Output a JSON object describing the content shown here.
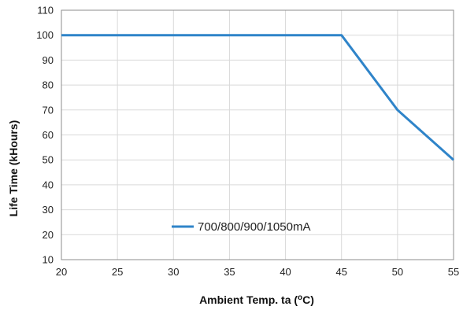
{
  "chart_data": {
    "type": "line",
    "title": "",
    "xlabel_prefix": "Ambient  Temp. ta (",
    "xlabel_sup": "o",
    "xlabel_suffix": "C)",
    "ylabel": "Life Time (kHours)",
    "xlim": [
      20,
      55
    ],
    "ylim": [
      10,
      110
    ],
    "xticks": [
      20,
      25,
      30,
      35,
      40,
      45,
      50,
      55
    ],
    "yticks": [
      10,
      20,
      30,
      40,
      50,
      60,
      70,
      80,
      90,
      100,
      110
    ],
    "grid": true,
    "legend_position": "bottom-center",
    "series": [
      {
        "name": "700/800/900/1050mA",
        "color": "#2f84c9",
        "x": [
          20,
          45,
          50,
          55
        ],
        "y": [
          100,
          100,
          70,
          50
        ]
      }
    ]
  }
}
